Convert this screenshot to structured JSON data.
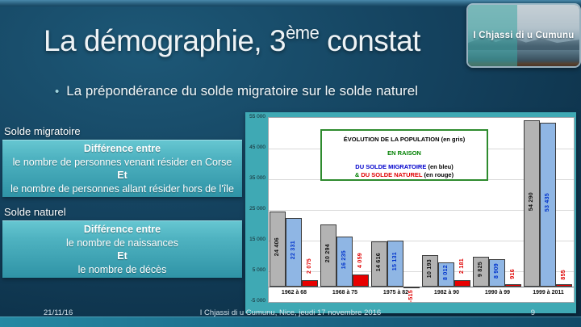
{
  "title": {
    "part1": "La démographie, 3",
    "sup": "ème",
    "part2": " constat"
  },
  "bullet": {
    "marker": "•",
    "text": "La prépondérance du solde migratoire sur le solde naturel"
  },
  "logo": {
    "text": "I Chjassi di u Cumunu"
  },
  "definitions": [
    {
      "heading": "Solde migratoire",
      "lines": [
        "Différence entre",
        "le nombre de personnes venant résider en Corse",
        "Et",
        "le nombre de personnes allant résider hors de l'île"
      ]
    },
    {
      "heading": "Solde naturel",
      "lines": [
        "Différence entre",
        "le nombre de naissances",
        "Et",
        "le nombre de décès"
      ]
    }
  ],
  "footer": {
    "date": "21/11/16",
    "center": "I Chjassi di u Cumunu, Nice, jeudi 17  novembre 2016",
    "page": "9"
  },
  "chart_data": {
    "type": "bar",
    "title": "ÉVOLUTION DE LA POPULATION en raison du solde migratoire et du solde naturel",
    "categories": [
      "1962 à 68",
      "1968 à 75",
      "1975 à 82",
      "1982 à 90",
      "1990 à 99",
      "1999 à 2011"
    ],
    "series": [
      {
        "name": "Évolution de la population (en gris)",
        "color": "#b3b3b3",
        "label_color": "#111111",
        "values": [
          24406,
          20294,
          14616,
          10193,
          9825,
          54290
        ],
        "labels": [
          "24 406",
          "20 294",
          "14 616",
          "10 193",
          "9 825",
          "54 290"
        ]
      },
      {
        "name": "Solde migratoire (en bleu)",
        "color": "#8fb6e4",
        "label_color": "#0033cc",
        "values": [
          22331,
          16235,
          15131,
          8012,
          8909,
          53435
        ],
        "labels": [
          "22 331",
          "16 235",
          "15 131",
          "8 012",
          "8 909",
          "53 435"
        ]
      },
      {
        "name": "Solde naturel (en rouge)",
        "color": "#e80000",
        "label_color": "#e00000",
        "values": [
          2075,
          4059,
          -515,
          2181,
          916,
          855
        ],
        "labels": [
          "2 075",
          "4 059",
          "-515",
          "2 181",
          "916",
          "855"
        ]
      }
    ],
    "ylim": [
      -5000,
      55000
    ],
    "yticks": [
      "55 000",
      "45 000",
      "35 000",
      "25 000",
      "15 000",
      "5 000",
      "-5 000"
    ],
    "grid": true,
    "legend_position": "top-center",
    "legend": {
      "border_color": "#2e8b2e",
      "lines": [
        [
          {
            "t": "ÉVOLUTION DE LA POPULATION ",
            "c": "#000000"
          },
          {
            "t": "(en gris)",
            "c": "#000000"
          }
        ],
        [
          {
            "t": "EN RAISON",
            "c": "#008000"
          }
        ],
        [
          {
            "t": "DU SOLDE MIGRATOIRE ",
            "c": "#0000cc"
          },
          {
            "t": "(en bleu)",
            "c": "#000000"
          }
        ],
        [
          {
            "t": "& ",
            "c": "#008000"
          },
          {
            "t": "DU SOLDE NATUREL ",
            "c": "#e00000"
          },
          {
            "t": "(en rouge)",
            "c": "#000000"
          }
        ]
      ]
    },
    "colors": {
      "panel": "#3FA9B4",
      "plot_bg": "#ffffff",
      "grid": "#d9d9d9"
    }
  }
}
